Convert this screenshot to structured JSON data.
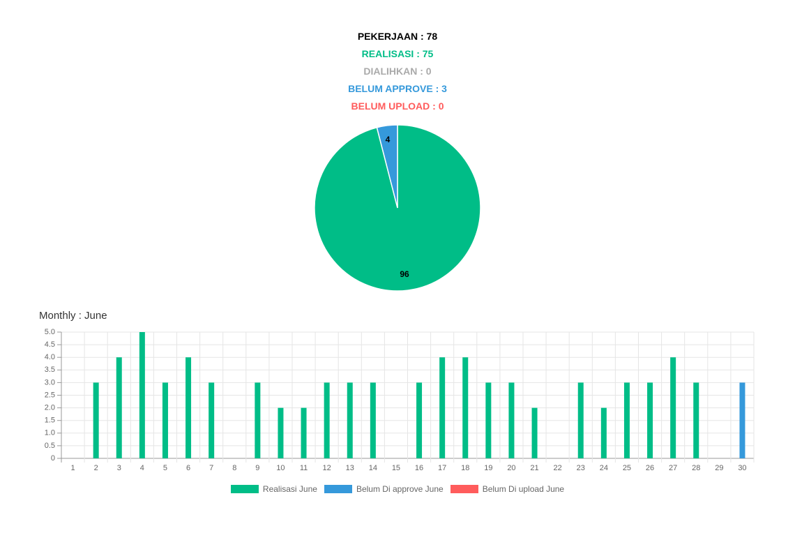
{
  "summary": {
    "total": "PEKERJAAN : 78",
    "realisasi": "REALISASI : 75",
    "dialihkan": "DIALIHKAN : 0",
    "belum_approve": "BELUM APPROVE : 3",
    "belum_upload": "BELUM UPLOAD : 0"
  },
  "colors": {
    "realisasi": "#00bd87",
    "approve": "#3599db",
    "upload": "#ff5c5c",
    "dialihkan": "#aaaaaa",
    "total": "#000000"
  },
  "monthly_title": "Monthly : June",
  "chart_data": [
    {
      "type": "pie",
      "slices": [
        {
          "label": "Realisasi",
          "value": 96,
          "color": "#00bd87"
        },
        {
          "label": "Belum Approve",
          "value": 4,
          "color": "#3599db"
        }
      ],
      "data_labels": [
        "96",
        "4"
      ]
    },
    {
      "type": "bar",
      "title": "Monthly : June",
      "categories": [
        "1",
        "2",
        "3",
        "4",
        "5",
        "6",
        "7",
        "8",
        "9",
        "10",
        "11",
        "12",
        "13",
        "14",
        "15",
        "16",
        "17",
        "18",
        "19",
        "20",
        "21",
        "22",
        "23",
        "24",
        "25",
        "26",
        "27",
        "28",
        "29",
        "30"
      ],
      "series": [
        {
          "name": "Realisasi June",
          "color": "#00bd87",
          "values": [
            0,
            3,
            4,
            5,
            3,
            4,
            3,
            0,
            3,
            2,
            2,
            3,
            3,
            3,
            0,
            3,
            4,
            4,
            3,
            3,
            2,
            0,
            3,
            2,
            3,
            3,
            4,
            3,
            0,
            0
          ]
        },
        {
          "name": "Belum Di approve June",
          "color": "#3599db",
          "values": [
            0,
            0,
            0,
            0,
            0,
            0,
            0,
            0,
            0,
            0,
            0,
            0,
            0,
            0,
            0,
            0,
            0,
            0,
            0,
            0,
            0,
            0,
            0,
            0,
            0,
            0,
            0,
            0,
            0,
            3
          ]
        },
        {
          "name": "Belum Di upload June",
          "color": "#ff5c5c",
          "values": [
            0,
            0,
            0,
            0,
            0,
            0,
            0,
            0,
            0,
            0,
            0,
            0,
            0,
            0,
            0,
            0,
            0,
            0,
            0,
            0,
            0,
            0,
            0,
            0,
            0,
            0,
            0,
            0,
            0,
            0
          ]
        }
      ],
      "y_ticks": [
        "0",
        "0.5",
        "1.0",
        "1.5",
        "2.0",
        "2.5",
        "3.0",
        "3.5",
        "4.0",
        "4.5",
        "5.0"
      ],
      "ylim": [
        0,
        5
      ],
      "grid": true,
      "legend_position": "bottom"
    }
  ]
}
